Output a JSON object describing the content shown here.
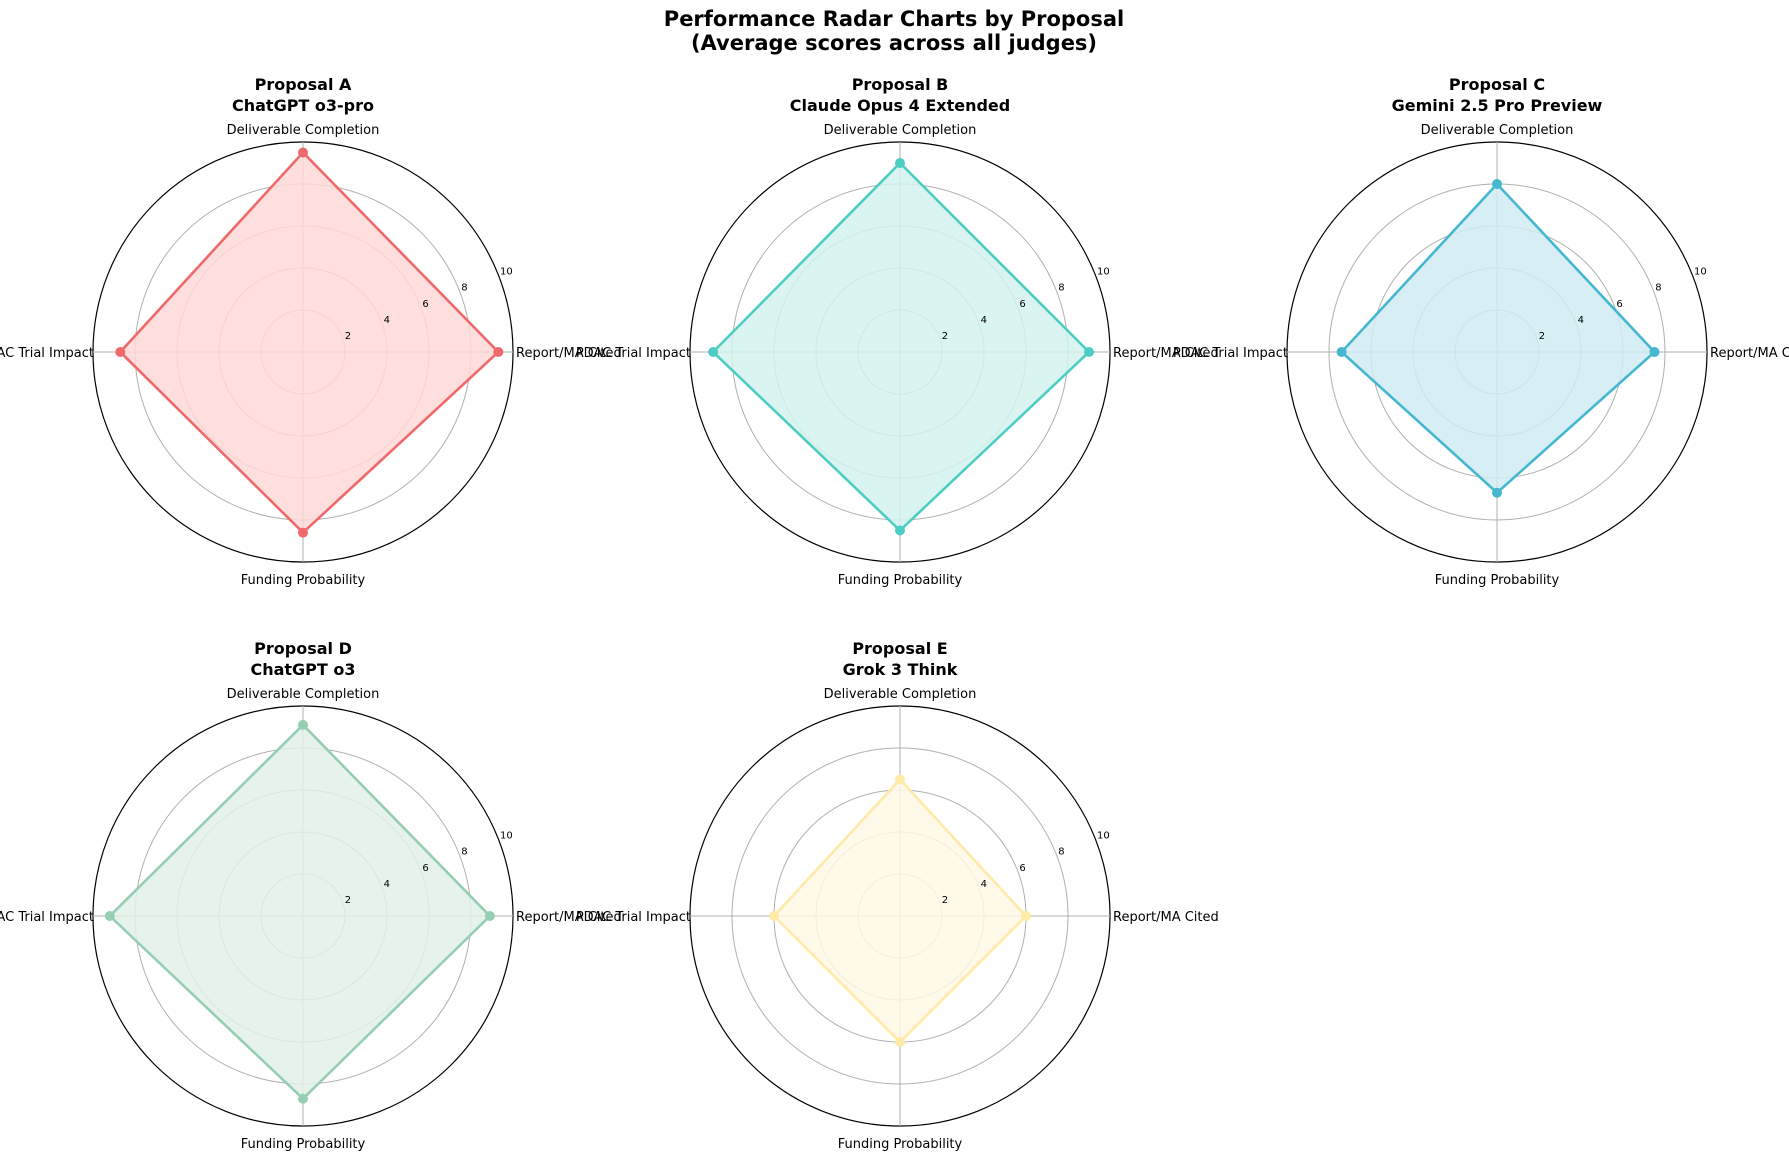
{
  "figure": {
    "title_line1": "Performance Radar Charts by Proposal",
    "title_line2": "(Average scores across all judges)"
  },
  "chart_data": [
    {
      "type": "radar",
      "title": "Proposal A",
      "subtitle": "ChatGPT o3-pro",
      "categories": [
        "Report/MA Cited",
        "Deliverable Completion",
        "PDAC Trial Impact",
        "Funding Probability"
      ],
      "values": [
        9.3,
        9.5,
        8.7,
        8.6
      ],
      "rlim": [
        0,
        10
      ],
      "rticks": [
        2,
        4,
        6,
        8,
        10
      ],
      "color": "#f0696a",
      "fill_color": "#ffd8d8",
      "grid": true
    },
    {
      "type": "radar",
      "title": "Proposal B",
      "subtitle": "Claude Opus 4 Extended",
      "categories": [
        "Report/MA Cited",
        "Deliverable Completion",
        "PDAC Trial Impact",
        "Funding Probability"
      ],
      "values": [
        9.0,
        9.0,
        8.9,
        8.5
      ],
      "rlim": [
        0,
        10
      ],
      "rticks": [
        2,
        4,
        6,
        8,
        10
      ],
      "color": "#4ecdc4",
      "fill_color": "#d3f2ef",
      "grid": true
    },
    {
      "type": "radar",
      "title": "Proposal C",
      "subtitle": "Gemini 2.5 Pro Preview",
      "categories": [
        "Report/MA Cited",
        "Deliverable Completion",
        "PDAC Trial Impact",
        "Funding Probability"
      ],
      "values": [
        7.5,
        8.0,
        7.4,
        6.7
      ],
      "rlim": [
        0,
        10
      ],
      "rticks": [
        2,
        4,
        6,
        8,
        10
      ],
      "color": "#45b7d1",
      "fill_color": "#d0ebf2",
      "grid": true
    },
    {
      "type": "radar",
      "title": "Proposal D",
      "subtitle": "ChatGPT o3",
      "categories": [
        "Report/MA Cited",
        "Deliverable Completion",
        "PDAC Trial Impact",
        "Funding Probability"
      ],
      "values": [
        8.9,
        9.1,
        9.2,
        8.7
      ],
      "rlim": [
        0,
        10
      ],
      "rticks": [
        2,
        4,
        6,
        8,
        10
      ],
      "color": "#96ceb4",
      "fill_color": "#e1f1e8",
      "grid": true
    },
    {
      "type": "radar",
      "title": "Proposal E",
      "subtitle": "Grok 3 Think",
      "categories": [
        "Report/MA Cited",
        "Deliverable Completion",
        "PDAC Trial Impact",
        "Funding Probability"
      ],
      "values": [
        6.0,
        6.5,
        6.0,
        6.0
      ],
      "rlim": [
        0,
        10
      ],
      "rticks": [
        2,
        4,
        6,
        8,
        10
      ],
      "color": "#ffeaa7",
      "fill_color": "#fff8e6",
      "grid": true
    }
  ]
}
